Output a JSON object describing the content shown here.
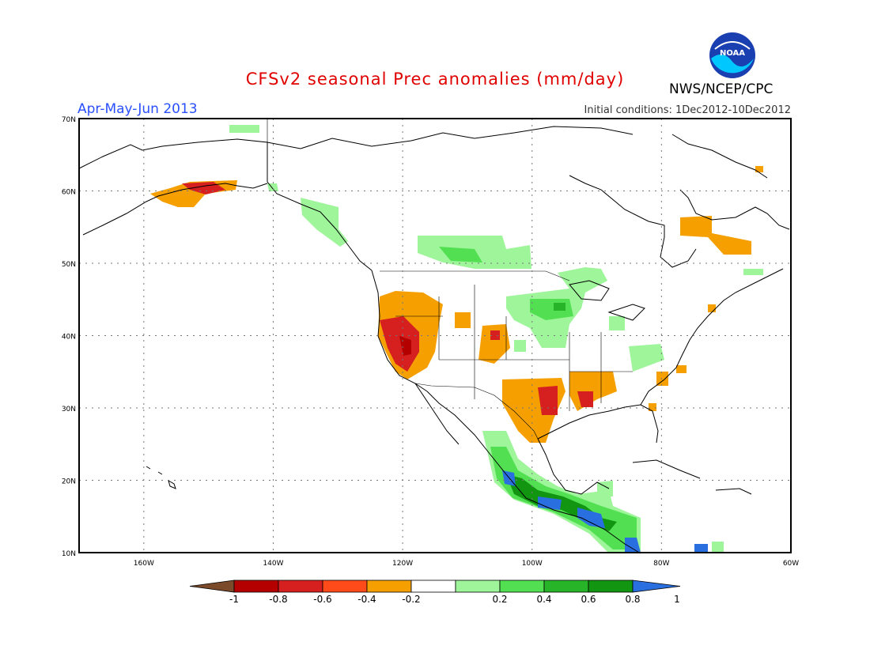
{
  "header": {
    "title": "CFSv2 seasonal Prec anomalies (mm/day)",
    "season": "Apr-May-Jun 2013",
    "initial_conditions": "Initial conditions: 1Dec2012-10Dec2012",
    "agency": "NWS/NCEP/CPC",
    "logo_text": "NOAA"
  },
  "map": {
    "lat_labels": [
      "70N",
      "60N",
      "50N",
      "40N",
      "30N",
      "20N",
      "10N"
    ],
    "lon_labels": [
      "160W",
      "140W",
      "120W",
      "100W",
      "80W",
      "60W"
    ],
    "lat_range": [
      10,
      70
    ],
    "lon_range": [
      -170,
      -60
    ],
    "regions": [
      {
        "name": "Alaska south coast",
        "category": "-0.6"
      },
      {
        "name": "California / Nevada",
        "category": "-0.8"
      },
      {
        "name": "Texas / Gulf coast",
        "category": "-0.6"
      },
      {
        "name": "Northern Plains / Canada prairies",
        "category": "0.4"
      },
      {
        "name": "Upper Midwest",
        "category": "0.6"
      },
      {
        "name": "Southern Mexico / Central America",
        "category": "1"
      },
      {
        "name": "Quebec / Labrador",
        "category": "-0.4"
      }
    ]
  },
  "colorbar": {
    "labels": [
      "-1",
      "-0.8",
      "-0.6",
      "-0.4",
      "-0.2",
      "0.2",
      "0.4",
      "0.6",
      "0.8",
      "1"
    ],
    "colors": [
      "#7b4a2a",
      "#b50000",
      "#d62020",
      "#ff4a1a",
      "#f5a000",
      "#ffffff",
      "#9ef59a",
      "#52e052",
      "#28b428",
      "#129612",
      "#2a6fe0"
    ]
  }
}
